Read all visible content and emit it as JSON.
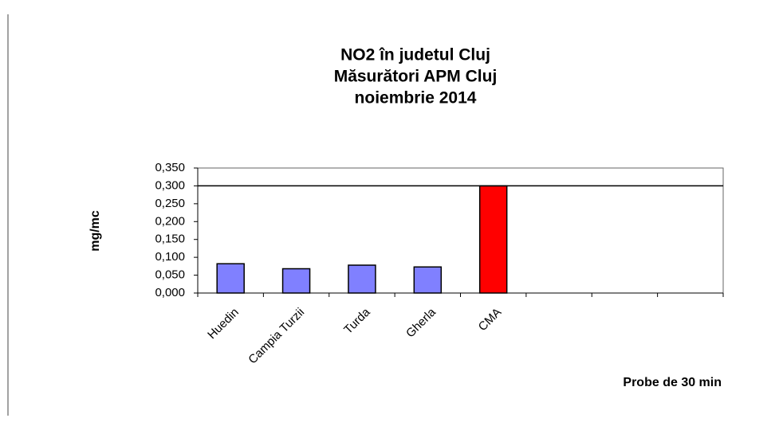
{
  "chart_data": {
    "type": "bar",
    "title": [
      "NO2 în judetul Cluj",
      "Măsurători APM Cluj",
      "noiembrie 2014"
    ],
    "y_label": "mg/mc",
    "x_label": "Probe de 30 min",
    "categories": [
      "Huedin",
      "Campia Turzii",
      "Turda",
      "Gherla",
      "CMA",
      null,
      null,
      null
    ],
    "values": [
      0.082,
      0.068,
      0.078,
      0.073,
      0.3,
      null,
      null,
      null
    ],
    "colors": [
      "#8080ff",
      "#8080ff",
      "#8080ff",
      "#8080ff",
      "#ff0000",
      null,
      null,
      null
    ],
    "ylim": [
      0,
      0.35
    ],
    "yticks": [
      {
        "value": 0,
        "label": "0,000"
      },
      {
        "value": 0.05,
        "label": "0,050"
      },
      {
        "value": 0.1,
        "label": "0,100"
      },
      {
        "value": 0.15,
        "label": "0,150"
      },
      {
        "value": 0.2,
        "label": "0,200"
      },
      {
        "value": 0.25,
        "label": "0,250"
      },
      {
        "value": 0.3,
        "label": "0,300"
      },
      {
        "value": 0.35,
        "label": "0,350"
      }
    ],
    "threshold": 0.3,
    "grid": false
  }
}
